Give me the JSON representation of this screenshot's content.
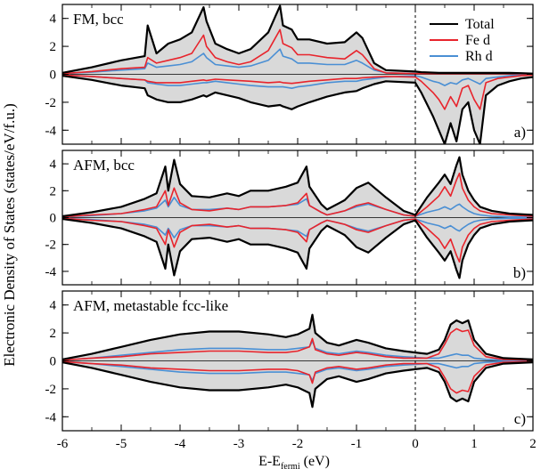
{
  "figure": {
    "ylabel": "Electronic Density of States (states/eV/f.u.)",
    "xlabel_main": "E-E",
    "xlabel_sub": "fermi",
    "xlabel_units": "(eV)",
    "fermi_line": 0
  },
  "legend": {
    "entries": [
      {
        "name": "Total",
        "color": "#000000"
      },
      {
        "name": "Fe d",
        "color": "#e8242c"
      },
      {
        "name": "Rh d",
        "color": "#4a8fd4"
      }
    ]
  },
  "colors": {
    "fill": "#d9d9d9",
    "total": "#000000",
    "fe": "#e8242c",
    "rh": "#4a8fd4"
  },
  "chart_data": [
    {
      "type": "line",
      "title": "FM, bcc",
      "panel_label": "a)",
      "xlim": [
        -6,
        2
      ],
      "ylim": [
        -5,
        5
      ],
      "xticks": [
        -6,
        -5,
        -4,
        -3,
        -2,
        -1,
        0,
        1,
        2
      ],
      "yticks": [
        -4,
        -2,
        0,
        2,
        4
      ],
      "x": [
        -6.0,
        -5.5,
        -5.0,
        -4.6,
        -4.55,
        -4.4,
        -4.2,
        -4.0,
        -3.8,
        -3.6,
        -3.55,
        -3.4,
        -3.2,
        -3.0,
        -2.8,
        -2.5,
        -2.3,
        -2.25,
        -2.1,
        -2.0,
        -1.8,
        -1.5,
        -1.2,
        -1.0,
        -0.9,
        -0.7,
        -0.5,
        0.0,
        0.1,
        0.3,
        0.4,
        0.5,
        0.6,
        0.7,
        0.8,
        0.9,
        1.0,
        1.1,
        1.2,
        1.4,
        1.6,
        1.8,
        2.0
      ],
      "series": [
        {
          "name": "Total",
          "color": "#000000",
          "up": [
            0.1,
            0.5,
            1.0,
            1.3,
            3.5,
            1.5,
            2.2,
            2.5,
            3.0,
            4.8,
            3.8,
            2.2,
            1.8,
            1.5,
            1.8,
            3.0,
            4.9,
            3.5,
            3.2,
            2.5,
            2.5,
            2.2,
            2.3,
            3.0,
            2.6,
            0.8,
            0.3,
            0.2,
            0.15,
            0.12,
            0.1,
            0.1,
            0.1,
            0.1,
            0.1,
            0.1,
            0.1,
            0.1,
            0.1,
            0.1,
            0.1,
            0.08,
            0.05
          ],
          "down": [
            -0.1,
            -0.4,
            -0.8,
            -1.0,
            -1.5,
            -1.8,
            -2.0,
            -2.0,
            -1.8,
            -1.5,
            -1.6,
            -1.3,
            -1.5,
            -1.7,
            -2.0,
            -2.3,
            -2.2,
            -2.3,
            -2.5,
            -2.3,
            -2.0,
            -1.6,
            -1.3,
            -1.2,
            -1.0,
            -0.7,
            -0.5,
            -0.6,
            -1.3,
            -3.0,
            -4.0,
            -5.0,
            -3.5,
            -4.8,
            -2.5,
            -2.0,
            -4.0,
            -5.0,
            -1.5,
            -0.8,
            -0.5,
            -0.3,
            -0.2
          ]
        },
        {
          "name": "Fe d",
          "color": "#e8242c",
          "up": [
            0.05,
            0.2,
            0.4,
            0.5,
            1.2,
            0.8,
            1.0,
            1.2,
            1.5,
            2.8,
            2.0,
            1.2,
            0.9,
            0.7,
            0.9,
            1.7,
            3.2,
            2.2,
            1.9,
            1.4,
            1.4,
            1.2,
            1.1,
            1.7,
            1.4,
            0.4,
            0.1,
            0.05,
            0.05,
            0.05,
            0.05,
            0.05,
            0.05,
            0.05,
            0.05,
            0.05,
            0.05,
            0.05,
            0.05,
            0.05,
            0.05,
            0.03,
            0.02
          ],
          "down": [
            -0.05,
            -0.15,
            -0.3,
            -0.4,
            -0.5,
            -0.6,
            -0.6,
            -0.6,
            -0.5,
            -0.4,
            -0.45,
            -0.35,
            -0.4,
            -0.45,
            -0.5,
            -0.6,
            -0.55,
            -0.6,
            -0.65,
            -0.6,
            -0.5,
            -0.4,
            -0.3,
            -0.3,
            -0.25,
            -0.2,
            -0.15,
            -0.2,
            -0.5,
            -1.3,
            -1.8,
            -2.5,
            -1.6,
            -2.3,
            -1.0,
            -0.8,
            -1.8,
            -2.5,
            -0.6,
            -0.3,
            -0.2,
            -0.1,
            -0.05
          ]
        },
        {
          "name": "Rh d",
          "color": "#4a8fd4",
          "up": [
            0.05,
            0.15,
            0.3,
            0.4,
            0.8,
            0.5,
            0.6,
            0.7,
            0.9,
            1.5,
            1.2,
            0.7,
            0.6,
            0.5,
            0.6,
            1.0,
            1.8,
            1.3,
            1.1,
            0.8,
            0.8,
            0.7,
            0.7,
            1.0,
            0.8,
            0.3,
            0.1,
            0.05,
            0.05,
            0.05,
            0.05,
            0.05,
            0.05,
            0.05,
            0.05,
            0.05,
            0.05,
            0.05,
            0.05,
            0.05,
            0.05,
            0.03,
            0.02
          ],
          "down": [
            -0.05,
            -0.15,
            -0.3,
            -0.4,
            -0.6,
            -0.7,
            -0.8,
            -0.8,
            -0.7,
            -0.6,
            -0.6,
            -0.5,
            -0.6,
            -0.7,
            -0.8,
            -0.9,
            -0.9,
            -0.9,
            -1.0,
            -0.9,
            -0.8,
            -0.6,
            -0.5,
            -0.5,
            -0.4,
            -0.3,
            -0.2,
            -0.1,
            -0.2,
            -0.5,
            -0.6,
            -0.8,
            -0.6,
            -0.7,
            -0.4,
            -0.3,
            -0.5,
            -0.7,
            -0.3,
            -0.2,
            -0.1,
            -0.05,
            -0.03
          ]
        }
      ]
    },
    {
      "type": "line",
      "title": "AFM, bcc",
      "panel_label": "b)",
      "xlim": [
        -6,
        2
      ],
      "ylim": [
        -5,
        5
      ],
      "xticks": [
        -6,
        -5,
        -4,
        -3,
        -2,
        -1,
        0,
        1,
        2
      ],
      "yticks": [
        -4,
        -2,
        0,
        2,
        4
      ],
      "x": [
        -6.0,
        -5.5,
        -5.0,
        -4.6,
        -4.4,
        -4.25,
        -4.2,
        -4.1,
        -4.0,
        -3.8,
        -3.5,
        -3.2,
        -3.0,
        -2.8,
        -2.5,
        -2.2,
        -2.0,
        -1.85,
        -1.8,
        -1.6,
        -1.5,
        -1.2,
        -1.0,
        -0.8,
        -0.5,
        -0.2,
        0.0,
        0.2,
        0.4,
        0.5,
        0.6,
        0.7,
        0.75,
        0.8,
        0.9,
        1.0,
        1.1,
        1.3,
        1.6,
        2.0
      ],
      "series": [
        {
          "name": "Total",
          "color": "#000000",
          "up": [
            0.1,
            0.4,
            0.8,
            1.4,
            1.8,
            3.8,
            2.0,
            4.3,
            2.5,
            1.6,
            1.5,
            1.8,
            1.6,
            2.0,
            2.0,
            2.3,
            2.6,
            3.8,
            2.3,
            1.0,
            0.6,
            1.3,
            2.2,
            2.6,
            1.5,
            0.5,
            0.2,
            1.5,
            2.6,
            3.2,
            2.5,
            3.9,
            4.5,
            3.2,
            2.0,
            1.3,
            0.8,
            0.5,
            0.3,
            0.2
          ],
          "down": [
            -0.1,
            -0.4,
            -0.8,
            -1.4,
            -1.8,
            -3.8,
            -2.0,
            -4.3,
            -2.5,
            -1.6,
            -1.5,
            -1.8,
            -1.6,
            -2.0,
            -2.0,
            -2.3,
            -2.6,
            -3.8,
            -2.3,
            -1.0,
            -0.6,
            -1.3,
            -2.2,
            -2.6,
            -1.5,
            -0.5,
            -0.2,
            -1.5,
            -2.6,
            -3.2,
            -2.5,
            -3.9,
            -4.5,
            -3.2,
            -2.0,
            -1.3,
            -0.8,
            -0.5,
            -0.3,
            -0.2
          ]
        },
        {
          "name": "Fe d",
          "color": "#e8242c",
          "up": [
            0.05,
            0.2,
            0.3,
            0.6,
            0.8,
            2.0,
            0.9,
            2.2,
            1.1,
            0.6,
            0.5,
            0.7,
            0.6,
            0.8,
            0.8,
            0.9,
            1.1,
            1.8,
            0.9,
            0.4,
            0.2,
            0.5,
            0.9,
            1.1,
            0.6,
            0.2,
            0.1,
            0.8,
            1.6,
            2.3,
            1.6,
            2.8,
            3.3,
            2.2,
            1.3,
            0.8,
            0.5,
            0.3,
            0.2,
            0.1
          ],
          "down": [
            -0.05,
            -0.2,
            -0.3,
            -0.6,
            -0.8,
            -2.0,
            -0.9,
            -2.2,
            -1.1,
            -0.6,
            -0.5,
            -0.7,
            -0.6,
            -0.8,
            -0.8,
            -0.9,
            -1.1,
            -1.8,
            -0.9,
            -0.4,
            -0.2,
            -0.5,
            -0.9,
            -1.1,
            -0.6,
            -0.2,
            -0.1,
            -0.8,
            -1.6,
            -2.3,
            -1.6,
            -2.8,
            -3.3,
            -2.2,
            -1.3,
            -0.8,
            -0.5,
            -0.3,
            -0.2,
            -0.1
          ]
        },
        {
          "name": "Rh d",
          "color": "#4a8fd4",
          "up": [
            0.05,
            0.15,
            0.3,
            0.5,
            0.7,
            1.3,
            0.8,
            1.5,
            0.9,
            0.6,
            0.6,
            0.7,
            0.6,
            0.8,
            0.8,
            0.9,
            1.0,
            1.4,
            0.9,
            0.4,
            0.2,
            0.5,
            0.8,
            1.0,
            0.6,
            0.2,
            0.1,
            0.4,
            0.6,
            0.8,
            0.6,
            0.9,
            1.0,
            0.8,
            0.5,
            0.3,
            0.2,
            0.1,
            0.05,
            0.03
          ],
          "down": [
            -0.05,
            -0.15,
            -0.3,
            -0.5,
            -0.7,
            -1.3,
            -0.8,
            -1.5,
            -0.9,
            -0.6,
            -0.6,
            -0.7,
            -0.6,
            -0.8,
            -0.8,
            -0.9,
            -1.0,
            -1.4,
            -0.9,
            -0.4,
            -0.2,
            -0.5,
            -0.8,
            -1.0,
            -0.6,
            -0.2,
            -0.1,
            -0.4,
            -0.6,
            -0.8,
            -0.6,
            -0.9,
            -1.0,
            -0.8,
            -0.5,
            -0.3,
            -0.2,
            -0.1,
            -0.05,
            -0.03
          ]
        }
      ]
    },
    {
      "type": "line",
      "title": "AFM, metastable fcc-like",
      "panel_label": "c)",
      "xlim": [
        -6,
        2
      ],
      "ylim": [
        -5,
        5
      ],
      "xticks": [
        -6,
        -5,
        -4,
        -3,
        -2,
        -1,
        0,
        1,
        2
      ],
      "yticks": [
        -4,
        -2,
        0,
        2,
        4
      ],
      "x": [
        -6.0,
        -5.5,
        -5.0,
        -4.5,
        -4.0,
        -3.5,
        -3.0,
        -2.5,
        -2.2,
        -2.0,
        -1.8,
        -1.75,
        -1.7,
        -1.5,
        -1.3,
        -1.0,
        -0.8,
        -0.5,
        -0.2,
        0.0,
        0.2,
        0.4,
        0.5,
        0.6,
        0.7,
        0.8,
        0.9,
        1.0,
        1.2,
        1.5,
        2.0
      ],
      "series": [
        {
          "name": "Total",
          "color": "#000000",
          "up": [
            0.1,
            0.5,
            1.0,
            1.5,
            1.9,
            2.1,
            2.1,
            1.9,
            1.7,
            1.9,
            2.3,
            3.3,
            2.0,
            1.3,
            1.1,
            1.5,
            1.3,
            0.9,
            0.7,
            0.6,
            0.5,
            0.8,
            1.5,
            2.6,
            2.9,
            2.7,
            2.9,
            1.5,
            0.5,
            0.2,
            0.1
          ],
          "down": [
            -0.1,
            -0.5,
            -1.0,
            -1.5,
            -1.9,
            -2.1,
            -2.1,
            -1.9,
            -1.7,
            -1.9,
            -2.3,
            -3.3,
            -2.0,
            -1.3,
            -1.1,
            -1.5,
            -1.3,
            -0.9,
            -0.7,
            -0.6,
            -0.5,
            -0.8,
            -1.5,
            -2.6,
            -2.9,
            -2.7,
            -2.9,
            -1.5,
            -0.5,
            -0.2,
            -0.1
          ]
        },
        {
          "name": "Fe d",
          "color": "#e8242c",
          "up": [
            0.05,
            0.2,
            0.3,
            0.5,
            0.6,
            0.7,
            0.7,
            0.6,
            0.6,
            0.7,
            1.0,
            1.6,
            0.8,
            0.5,
            0.4,
            0.6,
            0.5,
            0.3,
            0.2,
            0.2,
            0.2,
            0.5,
            1.2,
            2.0,
            2.3,
            2.1,
            2.2,
            1.1,
            0.3,
            0.1,
            0.05
          ],
          "down": [
            -0.05,
            -0.2,
            -0.3,
            -0.5,
            -0.6,
            -0.7,
            -0.7,
            -0.6,
            -0.6,
            -0.7,
            -1.0,
            -1.6,
            -0.8,
            -0.5,
            -0.4,
            -0.6,
            -0.5,
            -0.3,
            -0.2,
            -0.2,
            -0.2,
            -0.5,
            -1.2,
            -2.0,
            -2.3,
            -2.1,
            -2.2,
            -1.1,
            -0.3,
            -0.1,
            -0.05
          ]
        },
        {
          "name": "Rh d",
          "color": "#4a8fd4",
          "up": [
            0.05,
            0.2,
            0.4,
            0.6,
            0.8,
            0.9,
            0.9,
            0.8,
            0.8,
            0.9,
            1.0,
            1.4,
            0.9,
            0.6,
            0.5,
            0.7,
            0.6,
            0.4,
            0.3,
            0.25,
            0.2,
            0.2,
            0.3,
            0.4,
            0.5,
            0.4,
            0.4,
            0.2,
            0.1,
            0.05,
            0.02
          ],
          "down": [
            -0.05,
            -0.2,
            -0.4,
            -0.6,
            -0.8,
            -0.9,
            -0.9,
            -0.8,
            -0.8,
            -0.9,
            -1.0,
            -1.4,
            -0.9,
            -0.6,
            -0.5,
            -0.7,
            -0.6,
            -0.4,
            -0.3,
            -0.25,
            -0.2,
            -0.2,
            -0.3,
            -0.4,
            -0.5,
            -0.4,
            -0.4,
            -0.2,
            -0.1,
            -0.05,
            -0.02
          ]
        }
      ]
    }
  ]
}
